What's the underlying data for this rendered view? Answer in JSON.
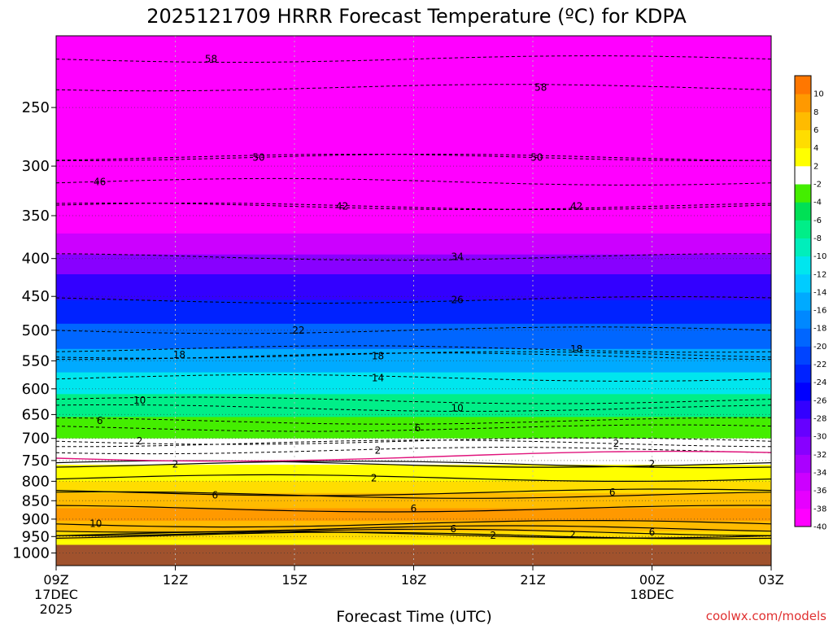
{
  "chart_data": {
    "type": "contour",
    "title": "2025121709 HRRR Forecast Temperature (ºC) for KDPA",
    "xlabel": "Forecast Time (UTC)",
    "credit": "coolwx.com/models",
    "x_ticks": [
      {
        "label": "09Z",
        "sub1": "17DEC",
        "sub2": "2025",
        "hour": 0
      },
      {
        "label": "12Z",
        "sub1": "",
        "sub2": "",
        "hour": 3
      },
      {
        "label": "15Z",
        "sub1": "",
        "sub2": "",
        "hour": 6
      },
      {
        "label": "18Z",
        "sub1": "",
        "sub2": "",
        "hour": 9
      },
      {
        "label": "21Z",
        "sub1": "",
        "sub2": "",
        "hour": 12
      },
      {
        "label": "00Z",
        "sub1": "18DEC",
        "sub2": "",
        "hour": 15
      },
      {
        "label": "03Z",
        "sub1": "",
        "sub2": "",
        "hour": 18
      }
    ],
    "xlim_hours": [
      0,
      18
    ],
    "y_axis": {
      "units": "hPa",
      "scale": "log",
      "range": [
        1040,
        200
      ],
      "ticks": [
        250,
        300,
        350,
        400,
        450,
        500,
        550,
        600,
        650,
        700,
        750,
        800,
        850,
        900,
        950,
        1000
      ],
      "tick_labels": [
        "250",
        "300",
        "350",
        "400",
        "450",
        "500",
        "550",
        "600",
        "650",
        "700",
        "750",
        "800",
        "850",
        "900",
        "950",
        "1000"
      ]
    },
    "surface_pressure_hpa": 975,
    "colorbar": {
      "levels": [
        -40,
        -38,
        -36,
        -34,
        -32,
        -30,
        -28,
        -26,
        -24,
        -22,
        -20,
        -18,
        -16,
        -14,
        -12,
        -10,
        -8,
        -6,
        -4,
        -2,
        2,
        4,
        6,
        8,
        10
      ],
      "labels": [
        "-40",
        "-38",
        "-36",
        "-34",
        "-32",
        "-30",
        "-28",
        "-26",
        "-24",
        "-22",
        "-20",
        "-18",
        "-16",
        "-14",
        "-12",
        "-10",
        "-8",
        "-6",
        "-4",
        "-2",
        "2",
        "4",
        "6",
        "8",
        "10"
      ],
      "colors": [
        "#ff00ff",
        "#e600ff",
        "#cc00ff",
        "#aa00ff",
        "#8800ff",
        "#6600ff",
        "#3300ff",
        "#0000ff",
        "#0022ff",
        "#0044ff",
        "#0066ff",
        "#0088ff",
        "#00aaff",
        "#00ccff",
        "#00e6ee",
        "#00eebb",
        "#00ee88",
        "#00e055",
        "#44ee00",
        "#ffffff",
        "#ffff00",
        "#ffdd00",
        "#ffbb00",
        "#ff9900",
        "#ff7700"
      ],
      "ground_color": "#a0522d"
    },
    "temperature_profile": [
      {
        "p": 200,
        "t": -58
      },
      {
        "p": 230,
        "t": -58
      },
      {
        "p": 260,
        "t": -54
      },
      {
        "p": 290,
        "t": -50
      },
      {
        "p": 315,
        "t": -46
      },
      {
        "p": 340,
        "t": -42
      },
      {
        "p": 370,
        "t": -38
      },
      {
        "p": 395,
        "t": -34
      },
      {
        "p": 420,
        "t": -30
      },
      {
        "p": 455,
        "t": -26
      },
      {
        "p": 490,
        "t": -22
      },
      {
        "p": 530,
        "t": -18
      },
      {
        "p": 570,
        "t": -14
      },
      {
        "p": 610,
        "t": -10
      },
      {
        "p": 655,
        "t": -6
      },
      {
        "p": 700,
        "t": -2
      },
      {
        "p": 740,
        "t": 0
      },
      {
        "p": 760,
        "t": 2
      },
      {
        "p": 800,
        "t": 4
      },
      {
        "p": 830,
        "t": 6
      },
      {
        "p": 870,
        "t": 8
      },
      {
        "p": 905,
        "t": 9
      },
      {
        "p": 935,
        "t": 6
      },
      {
        "p": 960,
        "t": 3
      },
      {
        "p": 975,
        "t": 2
      }
    ],
    "contour_labels": [
      {
        "text": "58",
        "hour": 3.9,
        "p": 215
      },
      {
        "text": "58",
        "hour": 12.2,
        "p": 235
      },
      {
        "text": "50",
        "hour": 5.1,
        "p": 292
      },
      {
        "text": "50",
        "hour": 12.1,
        "p": 292
      },
      {
        "text": "46",
        "hour": 1.1,
        "p": 315
      },
      {
        "text": "42",
        "hour": 7.2,
        "p": 340
      },
      {
        "text": "42",
        "hour": 13.1,
        "p": 340
      },
      {
        "text": "34",
        "hour": 10.1,
        "p": 398
      },
      {
        "text": "26",
        "hour": 10.1,
        "p": 455
      },
      {
        "text": "22",
        "hour": 6.1,
        "p": 500
      },
      {
        "text": "18",
        "hour": 3.1,
        "p": 540
      },
      {
        "text": "18",
        "hour": 8.1,
        "p": 542
      },
      {
        "text": "18",
        "hour": 13.1,
        "p": 530
      },
      {
        "text": "14",
        "hour": 8.1,
        "p": 580
      },
      {
        "text": "10",
        "hour": 2.1,
        "p": 622
      },
      {
        "text": "10",
        "hour": 10.1,
        "p": 637
      },
      {
        "text": "6",
        "hour": 1.1,
        "p": 663
      },
      {
        "text": "6",
        "hour": 9.1,
        "p": 678
      },
      {
        "text": "2",
        "hour": 2.1,
        "p": 706
      },
      {
        "text": "2",
        "hour": 8.1,
        "p": 727
      },
      {
        "text": "2",
        "hour": 14.1,
        "p": 711
      },
      {
        "text": "2",
        "hour": 3.0,
        "p": 759
      },
      {
        "text": "2",
        "hour": 8.0,
        "p": 792
      },
      {
        "text": "2",
        "hour": 15.0,
        "p": 758
      },
      {
        "text": "6",
        "hour": 4.0,
        "p": 835
      },
      {
        "text": "6",
        "hour": 9.0,
        "p": 871
      },
      {
        "text": "6",
        "hour": 14.0,
        "p": 828
      },
      {
        "text": "10",
        "hour": 1.0,
        "p": 913
      },
      {
        "text": "6",
        "hour": 10.0,
        "p": 928
      },
      {
        "text": "6",
        "hour": 15.0,
        "p": 938
      },
      {
        "text": "2",
        "hour": 11.0,
        "p": 947
      },
      {
        "text": "2",
        "hour": 13.0,
        "p": 945
      }
    ]
  }
}
